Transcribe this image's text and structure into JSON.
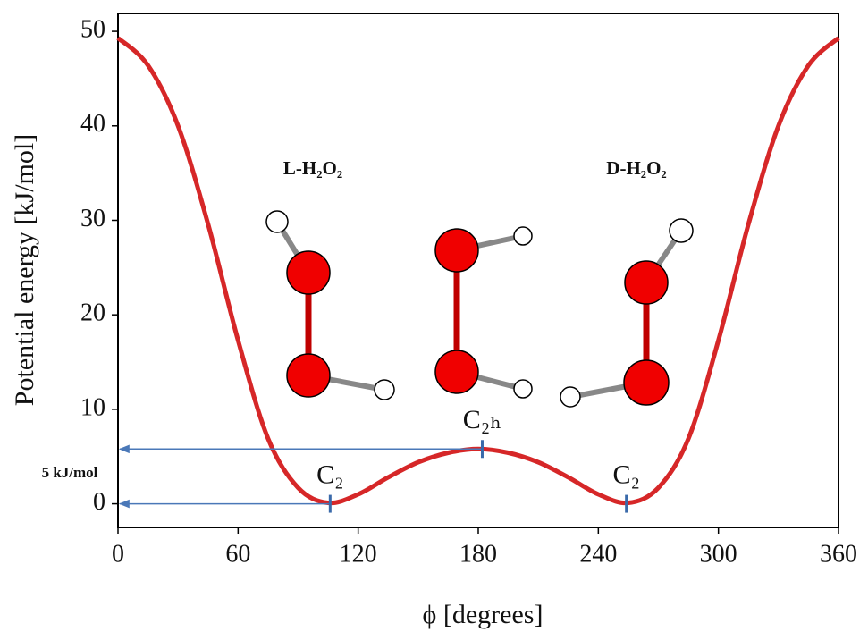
{
  "chart_data": {
    "type": "line",
    "x_label": "ϕ [degrees]",
    "y_label": "Potential energy [kJ/mol]",
    "x": [
      0,
      15,
      30,
      45,
      60,
      75,
      90,
      105,
      120,
      135,
      150,
      165,
      180,
      195,
      210,
      225,
      240,
      255,
      270,
      285,
      300,
      315,
      330,
      345,
      360
    ],
    "values": [
      49.3,
      46.4,
      40,
      29.6,
      17.3,
      6.9,
      1.7,
      0.1,
      1.0,
      2.8,
      4.4,
      5.4,
      5.8,
      5.4,
      4.4,
      2.8,
      1.0,
      0.1,
      1.7,
      6.9,
      17.3,
      29.6,
      40,
      46.4,
      49.3
    ],
    "color": "#d62728",
    "xlim": [
      0,
      360
    ],
    "xticks": [
      0,
      60,
      120,
      180,
      240,
      300,
      360
    ],
    "ylim": [
      -2.5,
      51.9
    ],
    "yticks": [
      0,
      10,
      20,
      30,
      40,
      50
    ],
    "annotations": [
      {
        "text": "C₂",
        "x": 106,
        "y": 0,
        "arrow": true
      },
      {
        "text": "C₂ₕ",
        "x": 182,
        "y": 5.8,
        "arrow": true
      },
      {
        "text": "C₂",
        "x": 254,
        "y": 0,
        "arrow": false
      }
    ],
    "barrier_label": "5 kJ/mol",
    "molecule_labels": [
      "L-H₂O₂",
      "D-H₂O₂"
    ]
  }
}
